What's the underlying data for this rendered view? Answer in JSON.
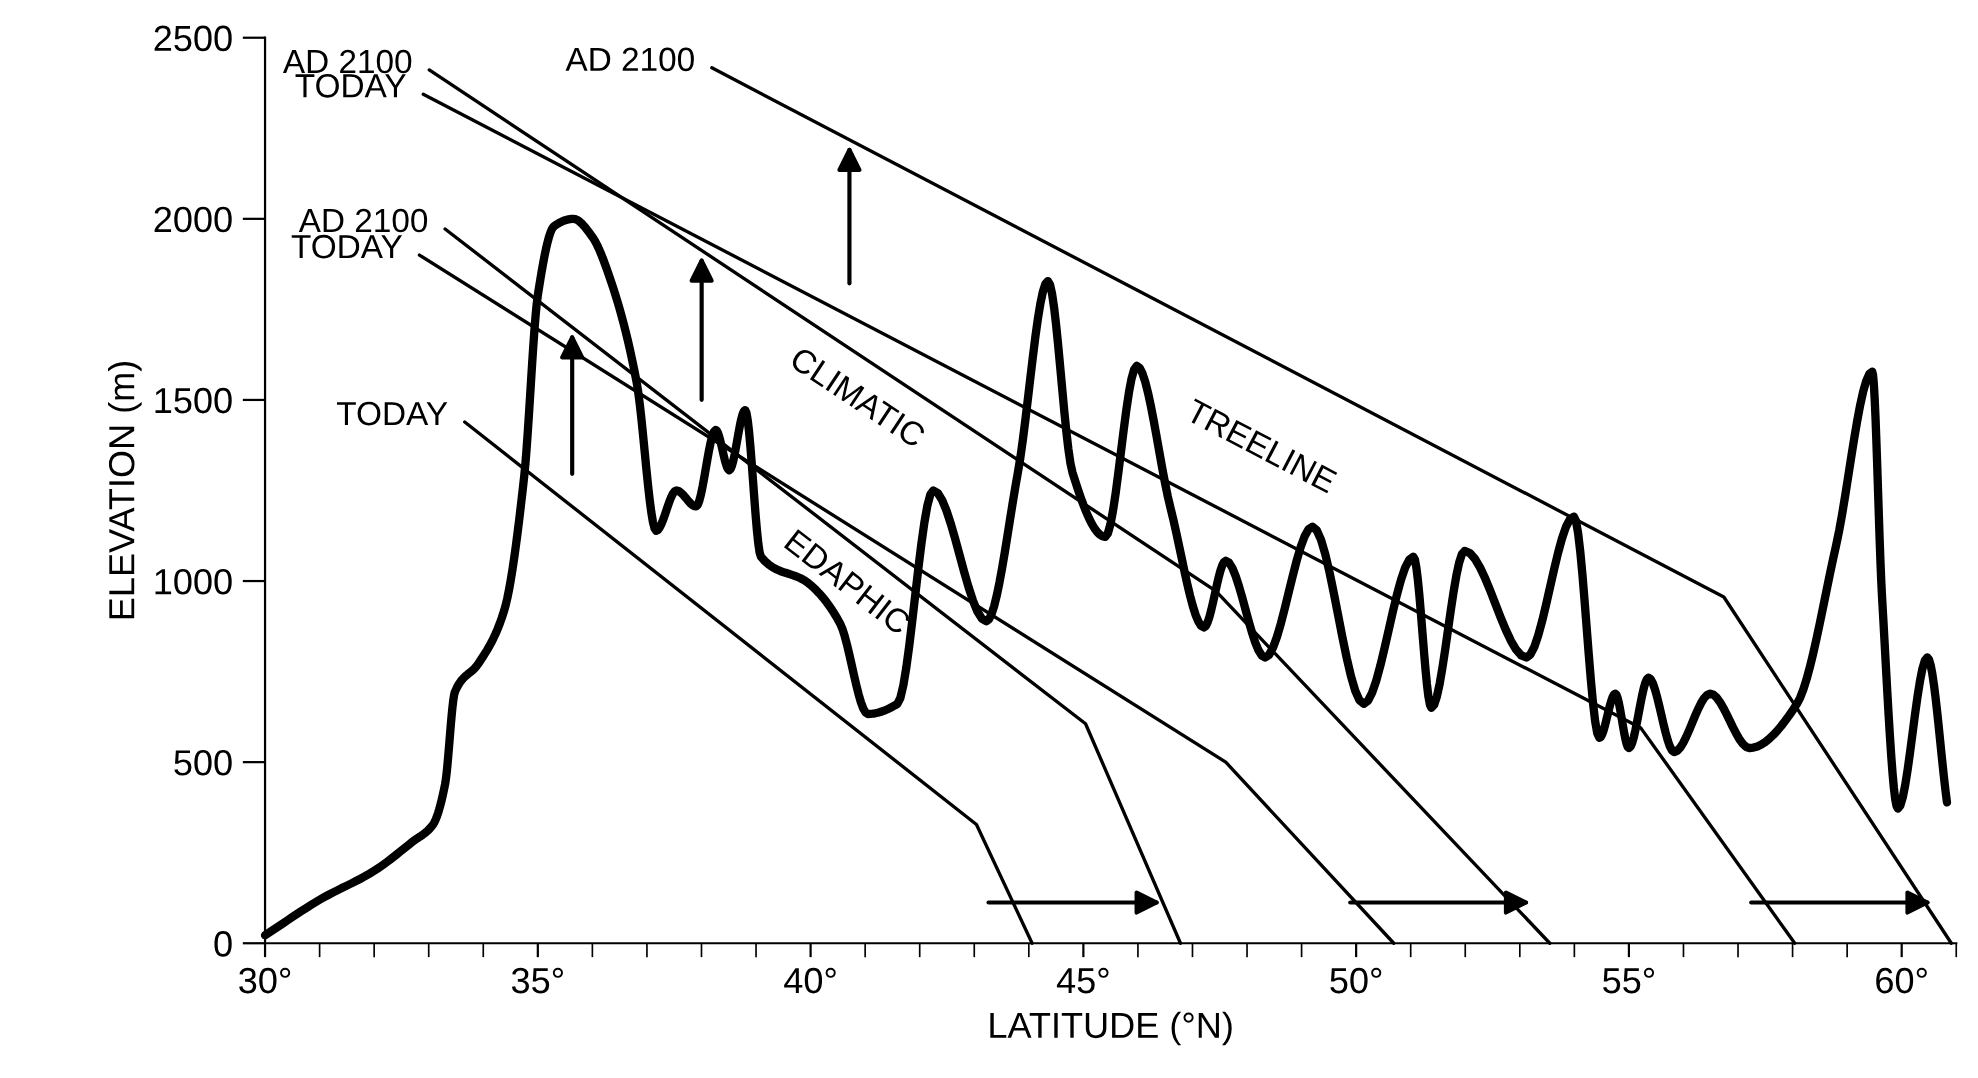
{
  "chart_data": {
    "type": "line",
    "xlabel": "LATITUDE (°N)",
    "ylabel": "ELEVATION (m)",
    "xlim": [
      30,
      61
    ],
    "ylim": [
      0,
      2500
    ],
    "xticks": [
      {
        "value": 30,
        "label": "30°"
      },
      {
        "value": 35,
        "label": "35°"
      },
      {
        "value": 40,
        "label": "40°"
      },
      {
        "value": 45,
        "label": "45°"
      },
      {
        "value": 50,
        "label": "50°"
      },
      {
        "value": 55,
        "label": "55°"
      },
      {
        "value": 60,
        "label": "60°"
      }
    ],
    "yticks": [
      0,
      500,
      1000,
      1500,
      2000,
      2500
    ],
    "grid": false,
    "legend": false,
    "marker": "none",
    "line_style": "solid",
    "series": [
      {
        "color": "#000000",
        "x": [
          30.0,
          31.0,
          32.0,
          32.7,
          33.08,
          33.3,
          33.48,
          33.91,
          34.38,
          34.75,
          35.0,
          35.3,
          35.65,
          36.0,
          36.34,
          36.81,
          37.17,
          37.54,
          37.9,
          38.26,
          38.51,
          38.8,
          39.09,
          39.96,
          40.54,
          41.05,
          41.59,
          42.25,
          43.22,
          43.8,
          44.35,
          44.8,
          45.4,
          45.98,
          46.6,
          47.21,
          47.61,
          48.33,
          49.2,
          50.14,
          51.05,
          51.38,
          51.99,
          53.12,
          53.99,
          54.46,
          54.75,
          55.0,
          55.36,
          55.83,
          56.49,
          57.21,
          58.08,
          58.8,
          59.46,
          59.64,
          59.93,
          60.47,
          60.83
        ],
        "values": [
          22,
          120,
          200,
          280,
          328,
          439,
          694,
          772,
          917,
          1289,
          1789,
          1980,
          2000,
          1950,
          1828,
          1550,
          1139,
          1250,
          1206,
          1417,
          1306,
          1472,
          1067,
          994,
          883,
          633,
          661,
          1250,
          889,
          1300,
          1828,
          1300,
          1122,
          1594,
          1200,
          872,
          1056,
          789,
          1150,
          661,
          1067,
          650,
          1083,
          789,
          1178,
          567,
          689,
          539,
          733,
          528,
          689,
          539,
          661,
          1100,
          1578,
          956,
          372,
          789,
          389
        ]
      },
      {
        "color": "#000000",
        "x": [
          33.66,
          43.04,
          44.06
        ],
        "values": [
          1439,
          328,
          0
        ]
      },
      {
        "color": "#000000",
        "x": [
          33.3,
          45.04,
          46.78
        ],
        "values": [
          1972,
          606,
          0
        ]
      },
      {
        "color": "#000000",
        "x": [
          32.83,
          47.61,
          50.69
        ],
        "values": [
          1900,
          500,
          0
        ]
      },
      {
        "color": "#000000",
        "x": [
          33.01,
          47.43,
          53.55
        ],
        "values": [
          2411,
          972,
          0
        ]
      },
      {
        "color": "#000000",
        "x": [
          32.9,
          55.22,
          58.04
        ],
        "values": [
          2344,
          594,
          0
        ]
      },
      {
        "color": "#000000",
        "x": [
          38.19,
          56.74,
          60.91
        ],
        "values": [
          2417,
          956,
          0
        ]
      }
    ],
    "annotations": [
      {
        "text": "TODAY",
        "x": 33.66,
        "y": 1439
      },
      {
        "text": "AD 2100",
        "x": 33.3,
        "y": 1972
      },
      {
        "text": "TODAY",
        "x": 32.83,
        "y": 1900
      },
      {
        "text": "AD 2100",
        "x": 33.01,
        "y": 2411
      },
      {
        "text": "TODAY",
        "x": 32.9,
        "y": 2344
      },
      {
        "text": "AD 2100",
        "x": 38.19,
        "y": 2417
      },
      "EDAPHIC",
      "CLIMATIC",
      "TREELINE"
    ]
  }
}
